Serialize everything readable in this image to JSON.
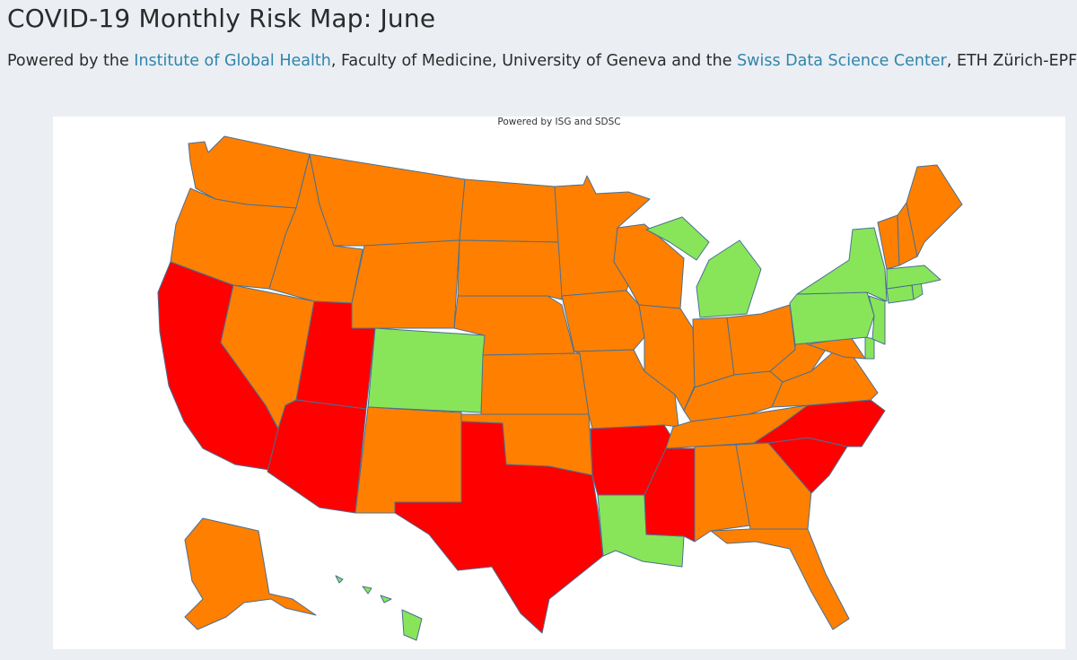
{
  "page": {
    "title": "COVID-19 Monthly Risk Map: June",
    "subtitle": {
      "prefix": "Powered by the ",
      "link1": "Institute of Global Health",
      "middle": ", Faculty of Medicine, University of Geneva and the ",
      "link2": "Swiss Data Science Center",
      "suffix": ", ETH Zürich-EPFL"
    }
  },
  "map": {
    "powered_note": "Powered by ISG and SDSC",
    "colors": {
      "high": "#ff0000",
      "medium": "#ff8000",
      "low": "#88e55a",
      "border": "#4a6f93",
      "background": "#ffffff"
    },
    "risk_by_state": {
      "WA": "medium",
      "OR": "medium",
      "CA": "high",
      "NV": "medium",
      "ID": "medium",
      "MT": "medium",
      "WY": "medium",
      "UT": "high",
      "AZ": "high",
      "CO": "low",
      "NM": "medium",
      "ND": "medium",
      "SD": "medium",
      "NE": "medium",
      "KS": "medium",
      "OK": "medium",
      "TX": "high",
      "MN": "medium",
      "IA": "medium",
      "MO": "medium",
      "AR": "high",
      "LA": "low",
      "WI": "medium",
      "IL": "medium",
      "MI": "low",
      "IN": "medium",
      "OH": "medium",
      "KY": "medium",
      "TN": "medium",
      "MS": "high",
      "AL": "medium",
      "GA": "medium",
      "FL": "medium",
      "SC": "high",
      "NC": "high",
      "VA": "medium",
      "WV": "medium",
      "MD": "medium",
      "DE": "low",
      "PA": "low",
      "NJ": "low",
      "NY": "low",
      "CT": "low",
      "RI": "low",
      "MA": "low",
      "VT": "medium",
      "NH": "medium",
      "ME": "medium",
      "AK": "medium",
      "HI": "low"
    }
  }
}
